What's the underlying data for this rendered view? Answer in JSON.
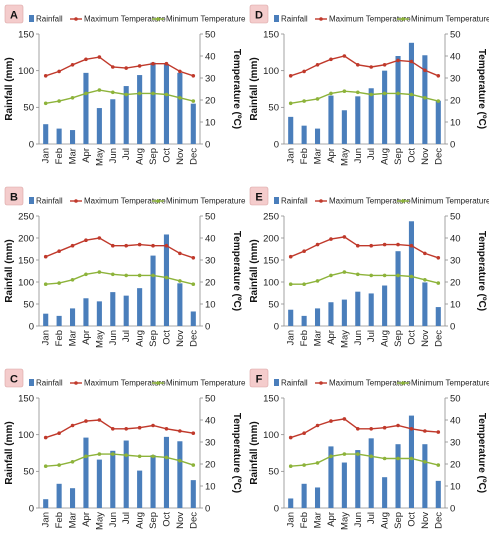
{
  "chart_data": [
    {
      "type": "bar",
      "panel_label": "A",
      "categories": [
        "Jan",
        "Feb",
        "Mar",
        "Apr",
        "May",
        "Jun",
        "Jul",
        "Aug",
        "Sep",
        "Oct",
        "Nov",
        "Dec"
      ],
      "ylabel": "Rainfall (mm)",
      "y2label": "Temperature (ºC)",
      "ylim": [
        0,
        150
      ],
      "y2lim": [
        0,
        50
      ],
      "yticks": [
        0,
        50,
        100,
        150
      ],
      "y2ticks": [
        0,
        10,
        20,
        30,
        40,
        50
      ],
      "legend": [
        "Rainfall",
        "Maximum Temperature",
        "Minimum Temperature"
      ],
      "legend_position": "top",
      "series": [
        {
          "name": "Rainfall",
          "kind": "bar",
          "axis": "left",
          "color": "#4a7ebb",
          "values": [
            27,
            21,
            19,
            97,
            49,
            61,
            79,
            94,
            111,
            109,
            97,
            55
          ]
        },
        {
          "name": "Maximum Temperature",
          "kind": "line",
          "axis": "right",
          "color": "#c0392b",
          "values": [
            31,
            33,
            36,
            38.5,
            39.5,
            35,
            34.5,
            35.5,
            36.5,
            36.5,
            33,
            31
          ]
        },
        {
          "name": "Minimum Temperature",
          "kind": "line",
          "axis": "right",
          "color": "#8db33a",
          "values": [
            18.5,
            19.5,
            21,
            23,
            24.5,
            23.5,
            22.5,
            23,
            23,
            22.5,
            21,
            19.5
          ]
        }
      ]
    },
    {
      "type": "bar",
      "panel_label": "D",
      "categories": [
        "Jan",
        "Feb",
        "Mar",
        "Apr",
        "May",
        "Jun",
        "Jul",
        "Aug",
        "Sep",
        "Oct",
        "Nov",
        "Dec"
      ],
      "ylabel": "Rainfall (mm)",
      "y2label": "Temperature (ºC)",
      "ylim": [
        0,
        150
      ],
      "y2lim": [
        0,
        50
      ],
      "yticks": [
        0,
        50,
        100,
        150
      ],
      "y2ticks": [
        0,
        10,
        20,
        30,
        40,
        50
      ],
      "legend": [
        "Rainfall",
        "Maximum Temperature",
        "Minimum Temperature"
      ],
      "legend_position": "top",
      "series": [
        {
          "name": "Rainfall",
          "kind": "bar",
          "axis": "left",
          "color": "#4a7ebb",
          "values": [
            37,
            25,
            21,
            66,
            46,
            65,
            76,
            100,
            120,
            138,
            121,
            59
          ]
        },
        {
          "name": "Maximum Temperature",
          "kind": "line",
          "axis": "right",
          "color": "#c0392b",
          "values": [
            31,
            33,
            36,
            38.5,
            40,
            36,
            35,
            36,
            38,
            37.5,
            33.5,
            31
          ]
        },
        {
          "name": "Minimum Temperature",
          "kind": "line",
          "axis": "right",
          "color": "#8db33a",
          "values": [
            18.5,
            19.5,
            20.5,
            23,
            24,
            23.5,
            22.5,
            23,
            23,
            22.5,
            21,
            19.5
          ]
        }
      ]
    },
    {
      "type": "bar",
      "panel_label": "B",
      "categories": [
        "Jan",
        "Feb",
        "Mar",
        "Apr",
        "May",
        "Jun",
        "Jul",
        "Aug",
        "Sep",
        "Oct",
        "Nov",
        "Dec"
      ],
      "ylabel": "Rainfall (mm)",
      "y2label": "Temperature (ºC)",
      "ylim": [
        0,
        250
      ],
      "y2lim": [
        0,
        50
      ],
      "yticks": [
        0,
        50,
        100,
        150,
        200,
        250
      ],
      "y2ticks": [
        0,
        10,
        20,
        30,
        40,
        50
      ],
      "legend": [
        "Rainfall",
        "Maximum Temperature",
        "Minimum Temperature"
      ],
      "legend_position": "top",
      "series": [
        {
          "name": "Rainfall",
          "kind": "bar",
          "axis": "left",
          "color": "#4a7ebb",
          "values": [
            28,
            23,
            40,
            63,
            56,
            77,
            69,
            86,
            160,
            208,
            97,
            33
          ]
        },
        {
          "name": "Maximum Temperature",
          "kind": "line",
          "axis": "right",
          "color": "#c0392b",
          "values": [
            31.5,
            34,
            36.5,
            39,
            40,
            36.5,
            36.5,
            37,
            36.5,
            36.5,
            33,
            31
          ]
        },
        {
          "name": "Minimum Temperature",
          "kind": "line",
          "axis": "right",
          "color": "#8db33a",
          "values": [
            19,
            19.5,
            21,
            23.5,
            24.5,
            23.5,
            23,
            23,
            23,
            22,
            20.5,
            19
          ]
        }
      ]
    },
    {
      "type": "bar",
      "panel_label": "E",
      "categories": [
        "Jan",
        "Feb",
        "Mar",
        "Apr",
        "May",
        "Jun",
        "Jul",
        "Aug",
        "Sep",
        "Oct",
        "Nov",
        "Dec"
      ],
      "ylabel": "Rainfall (mm)",
      "y2label": "Temperature (ºC)",
      "ylim": [
        0,
        250
      ],
      "y2lim": [
        0,
        50
      ],
      "yticks": [
        0,
        50,
        100,
        150,
        200,
        250
      ],
      "y2ticks": [
        0,
        10,
        20,
        30,
        40,
        50
      ],
      "legend": [
        "Rainfall",
        "Maximum Temperature",
        "Minimum Temperature"
      ],
      "legend_position": "top",
      "series": [
        {
          "name": "Rainfall",
          "kind": "bar",
          "axis": "left",
          "color": "#4a7ebb",
          "values": [
            37,
            23,
            40,
            54,
            60,
            78,
            74,
            92,
            170,
            238,
            99,
            43
          ]
        },
        {
          "name": "Maximum Temperature",
          "kind": "line",
          "axis": "right",
          "color": "#c0392b",
          "values": [
            31.5,
            34,
            37,
            39.5,
            40.5,
            36.5,
            36.5,
            37,
            37,
            36.5,
            33,
            31
          ]
        },
        {
          "name": "Minimum Temperature",
          "kind": "line",
          "axis": "right",
          "color": "#8db33a",
          "values": [
            19,
            19,
            20.5,
            23,
            24.5,
            23.5,
            23,
            23,
            23,
            22.5,
            21,
            19.5
          ]
        }
      ]
    },
    {
      "type": "bar",
      "panel_label": "C",
      "categories": [
        "Jan",
        "Feb",
        "Mar",
        "Apr",
        "May",
        "Jun",
        "Jul",
        "Aug",
        "Sep",
        "Oct",
        "Nov",
        "Dec"
      ],
      "ylabel": "Rainfall (mm)",
      "y2label": "Temperature (ºC)",
      "ylim": [
        0,
        150
      ],
      "y2lim": [
        0,
        50
      ],
      "yticks": [
        0,
        50,
        100,
        150
      ],
      "y2ticks": [
        0,
        10,
        20,
        30,
        40,
        50
      ],
      "legend": [
        "Rainfall",
        "Maximum Temperature",
        "Minimum Temperature"
      ],
      "legend_position": "top",
      "series": [
        {
          "name": "Rainfall",
          "kind": "bar",
          "axis": "left",
          "color": "#4a7ebb",
          "values": [
            12,
            33,
            27,
            96,
            66,
            78,
            92,
            51,
            72,
            97,
            91,
            38
          ]
        },
        {
          "name": "Maximum Temperature",
          "kind": "line",
          "axis": "right",
          "color": "#c0392b",
          "values": [
            32,
            34,
            37.5,
            39.5,
            40,
            36,
            36,
            36.5,
            37.5,
            36,
            35,
            34
          ]
        },
        {
          "name": "Minimum Temperature",
          "kind": "line",
          "axis": "right",
          "color": "#8db33a",
          "values": [
            19,
            19.5,
            21,
            23.5,
            24.5,
            24.5,
            24,
            23.5,
            23.5,
            23,
            21.5,
            19.5
          ]
        }
      ]
    },
    {
      "type": "bar",
      "panel_label": "F",
      "categories": [
        "Jan",
        "Feb",
        "Mar",
        "Apr",
        "May",
        "Jun",
        "Jul",
        "Aug",
        "Sep",
        "Oct",
        "Nov",
        "Dec"
      ],
      "ylabel": "Rainfall (mm)",
      "y2label": "Temperature (ºC)",
      "ylim": [
        0,
        150
      ],
      "y2lim": [
        0,
        50
      ],
      "yticks": [
        0,
        50,
        100,
        150
      ],
      "y2ticks": [
        0,
        10,
        20,
        30,
        40,
        50
      ],
      "legend": [
        "Rainfall",
        "Maximum Temperature",
        "Minimum Temperature"
      ],
      "legend_position": "top",
      "series": [
        {
          "name": "Rainfall",
          "kind": "bar",
          "axis": "left",
          "color": "#4a7ebb",
          "values": [
            13,
            33,
            28,
            84,
            62,
            79,
            95,
            42,
            87,
            126,
            87,
            37
          ]
        },
        {
          "name": "Maximum Temperature",
          "kind": "line",
          "axis": "right",
          "color": "#c0392b",
          "values": [
            32,
            34,
            37.5,
            39.5,
            40.5,
            36,
            36,
            36.5,
            37.5,
            36,
            35,
            34.5
          ]
        },
        {
          "name": "Minimum Temperature",
          "kind": "line",
          "axis": "right",
          "color": "#8db33a",
          "values": [
            19,
            19.5,
            20.5,
            23.5,
            24.5,
            24.5,
            23.5,
            22.5,
            22.5,
            22.5,
            21,
            19.5
          ]
        }
      ]
    }
  ]
}
